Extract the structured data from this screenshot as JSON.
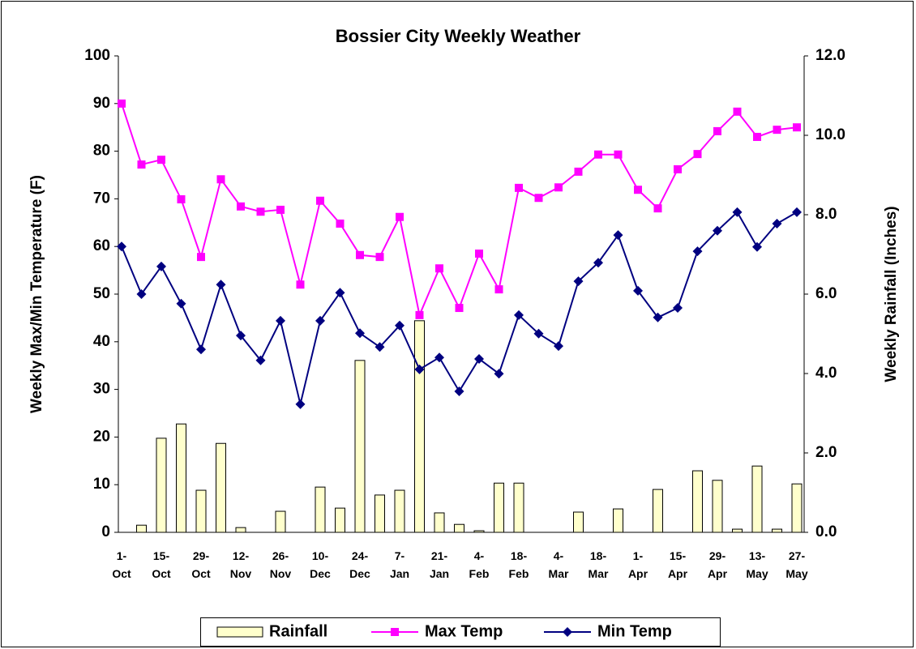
{
  "chart_data": {
    "type": "bar-line",
    "title": "Bossier City Weekly Weather",
    "ylabel": "Weekly Max/Min Temperature (F)",
    "y2label": "Weekly Rainfall (Inches)",
    "categories": [
      "1-Oct",
      null,
      "15-Oct",
      null,
      "29-Oct",
      null,
      "12-Nov",
      null,
      "26-Nov",
      null,
      "10-Dec",
      null,
      "24-Dec",
      null,
      "7-Jan",
      null,
      "21-Jan",
      null,
      "4-Feb",
      null,
      "18-Feb",
      null,
      "4-Mar",
      null,
      "18-Mar",
      null,
      "1-Apr",
      null,
      "15-Apr",
      null,
      "29-Apr",
      null,
      "13-May",
      null,
      "27-May"
    ],
    "series": [
      {
        "name": "Rainfall",
        "type": "bar",
        "axis": "y2",
        "color": "#FFFFCC",
        "values": [
          0,
          0.18,
          2.37,
          2.73,
          1.06,
          2.24,
          0.12,
          0,
          0.53,
          0,
          1.14,
          0.61,
          4.33,
          0.94,
          1.06,
          5.33,
          0.49,
          0.2,
          0.04,
          1.24,
          1.24,
          0,
          0,
          0.51,
          0,
          0.59,
          0,
          1.08,
          0,
          1.55,
          1.31,
          0.08,
          1.67,
          0.08,
          1.22
        ]
      },
      {
        "name": "Max Temp",
        "type": "line",
        "marker": "square",
        "color": "#FF00FF",
        "values": [
          90,
          77.2,
          78.2,
          69.9,
          57.8,
          74.1,
          68.4,
          67.3,
          67.7,
          52.0,
          69.6,
          64.8,
          58.2,
          57.8,
          66.2,
          45.6,
          55.4,
          47.1,
          58.5,
          51.0,
          72.3,
          70.2,
          72.4,
          75.7,
          79.3,
          79.3,
          71.9,
          68.0,
          76.2,
          79.4,
          84.2,
          88.3,
          83.0,
          84.5,
          85.0
        ]
      },
      {
        "name": "Min Temp",
        "type": "line",
        "marker": "diamond",
        "color": "#000080",
        "values": [
          60,
          50,
          55.8,
          48.0,
          38.4,
          52.0,
          41.3,
          36.1,
          44.4,
          26.9,
          44.4,
          50.3,
          41.8,
          38.9,
          43.4,
          34.2,
          36.7,
          29.6,
          36.4,
          33.3,
          45.6,
          41.7,
          39.1,
          52.7,
          56.6,
          62.4,
          50.7,
          45.1,
          47.1,
          59.0,
          63.3,
          67.2,
          59.9,
          64.8,
          67.2
        ]
      }
    ],
    "ylim": [
      0,
      100
    ],
    "yticks": [
      0,
      10,
      20,
      30,
      40,
      50,
      60,
      70,
      80,
      90,
      100
    ],
    "y2lim": [
      0,
      12
    ],
    "y2ticks": [
      {
        "value": 0,
        "label": "0.0"
      },
      {
        "value": 2,
        "label": "2.0"
      },
      {
        "value": 4,
        "label": "4.0"
      },
      {
        "value": 6,
        "label": "6.0"
      },
      {
        "value": 8,
        "label": "8.0"
      },
      {
        "value": 10,
        "label": "10.0"
      },
      {
        "value": 12,
        "label": "12.0"
      }
    ],
    "grid": false,
    "legend": "bottom"
  }
}
